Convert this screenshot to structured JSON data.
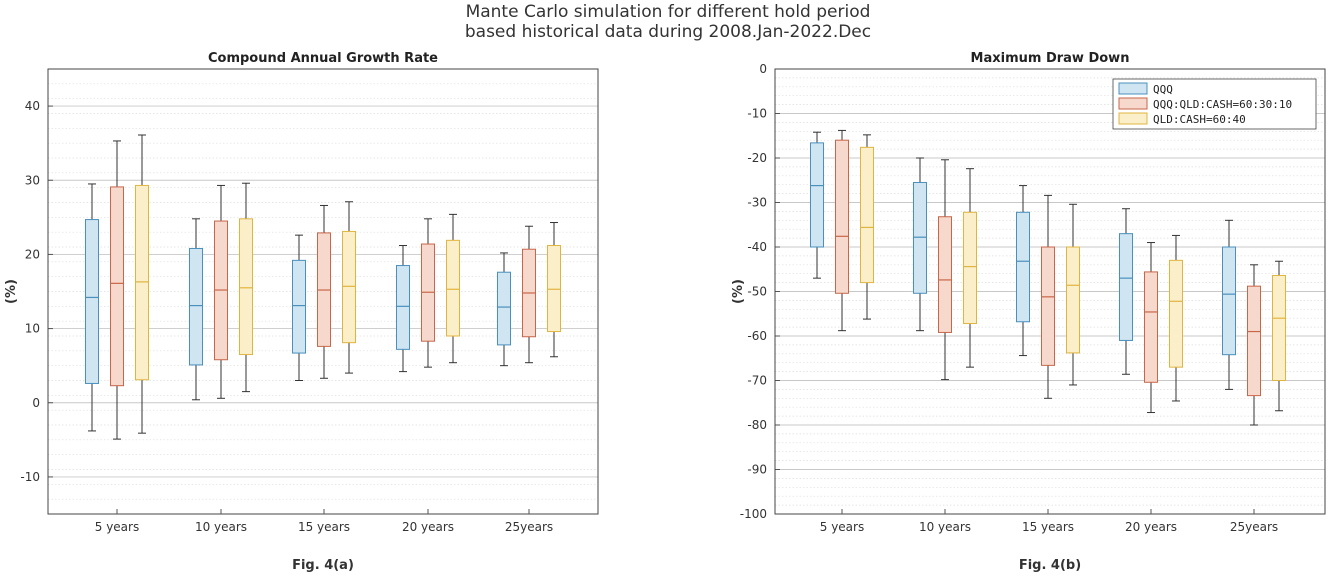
{
  "figure": {
    "title_line1": "Mante Carlo simulation for different hold period",
    "title_line2": "based historical data during 2008.Jan-2022.Dec"
  },
  "colors": {
    "QQQ": {
      "fill": "#cfe5f1",
      "stroke": "#4a90bd"
    },
    "QQQ:QLD:CASH=60:30:10": {
      "fill": "#f6d9cc",
      "stroke": "#c8664a"
    },
    "QLD:CASH=60:40": {
      "fill": "#fbefc9",
      "stroke": "#e0b440"
    }
  },
  "chart_data": [
    {
      "type": "box",
      "title": "Compound Annual Growth Rate",
      "ylabel": "(%)",
      "caption": "Fig. 4(a)",
      "ylim": [
        -15,
        45
      ],
      "yticks": [
        -10,
        0,
        10,
        20,
        30,
        40
      ],
      "grid": true,
      "categories": [
        "5 years",
        "10 years",
        "15 years",
        "20 years",
        "25years"
      ],
      "series": [
        {
          "name": "QQQ",
          "boxes": [
            {
              "min": -3.8,
              "q1": 2.6,
              "median": 14.2,
              "q3": 24.7,
              "max": 29.5
            },
            {
              "min": 0.4,
              "q1": 5.1,
              "median": 13.1,
              "q3": 20.8,
              "max": 24.8
            },
            {
              "min": 3.0,
              "q1": 6.7,
              "median": 13.1,
              "q3": 19.2,
              "max": 22.6
            },
            {
              "min": 4.2,
              "q1": 7.2,
              "median": 13.0,
              "q3": 18.5,
              "max": 21.2
            },
            {
              "min": 5.0,
              "q1": 7.8,
              "median": 12.9,
              "q3": 17.6,
              "max": 20.2
            }
          ]
        },
        {
          "name": "QQQ:QLD:CASH=60:30:10",
          "boxes": [
            {
              "min": -4.9,
              "q1": 2.3,
              "median": 16.1,
              "q3": 29.1,
              "max": 35.3
            },
            {
              "min": 0.6,
              "q1": 5.8,
              "median": 15.2,
              "q3": 24.5,
              "max": 29.3
            },
            {
              "min": 3.3,
              "q1": 7.6,
              "median": 15.2,
              "q3": 22.9,
              "max": 26.6
            },
            {
              "min": 4.8,
              "q1": 8.3,
              "median": 14.9,
              "q3": 21.4,
              "max": 24.8
            },
            {
              "min": 5.4,
              "q1": 8.9,
              "median": 14.8,
              "q3": 20.7,
              "max": 23.8
            }
          ]
        },
        {
          "name": "QLD:CASH=60:40",
          "boxes": [
            {
              "min": -4.1,
              "q1": 3.1,
              "median": 16.3,
              "q3": 29.3,
              "max": 36.1
            },
            {
              "min": 1.5,
              "q1": 6.5,
              "median": 15.5,
              "q3": 24.8,
              "max": 29.6
            },
            {
              "min": 4.0,
              "q1": 8.1,
              "median": 15.7,
              "q3": 23.1,
              "max": 27.1
            },
            {
              "min": 5.4,
              "q1": 9.0,
              "median": 15.3,
              "q3": 21.9,
              "max": 25.4
            },
            {
              "min": 6.2,
              "q1": 9.6,
              "median": 15.3,
              "q3": 21.2,
              "max": 24.3
            }
          ]
        }
      ]
    },
    {
      "type": "box",
      "title": "Maximum Draw Down",
      "ylabel": "(%)",
      "caption": "Fig. 4(b)",
      "ylim": [
        -100,
        0
      ],
      "yticks": [
        0,
        -10,
        -20,
        -30,
        -40,
        -50,
        -60,
        -70,
        -80,
        -90,
        -100
      ],
      "grid": true,
      "legend": "top-right",
      "categories": [
        "5 years",
        "10 years",
        "15 years",
        "20 years",
        "25years"
      ],
      "series": [
        {
          "name": "QQQ",
          "boxes": [
            {
              "min": -47.0,
              "q1": -40.0,
              "median": -26.2,
              "q3": -16.6,
              "max": -14.2
            },
            {
              "min": -58.8,
              "q1": -50.4,
              "median": -37.8,
              "q3": -25.5,
              "max": -20.0
            },
            {
              "min": -64.4,
              "q1": -56.8,
              "median": -43.2,
              "q3": -32.2,
              "max": -26.2
            },
            {
              "min": -68.6,
              "q1": -61.0,
              "median": -47.0,
              "q3": -37.0,
              "max": -31.4
            },
            {
              "min": -72.0,
              "q1": -64.2,
              "median": -50.6,
              "q3": -40.0,
              "max": -34.0
            }
          ]
        },
        {
          "name": "QQQ:QLD:CASH=60:30:10",
          "boxes": [
            {
              "min": -58.8,
              "q1": -50.4,
              "median": -37.6,
              "q3": -16.0,
              "max": -13.8
            },
            {
              "min": -69.8,
              "q1": -59.2,
              "median": -47.4,
              "q3": -33.2,
              "max": -20.4
            },
            {
              "min": -74.0,
              "q1": -66.6,
              "median": -51.2,
              "q3": -40.0,
              "max": -28.4
            },
            {
              "min": -77.2,
              "q1": -70.4,
              "median": -54.6,
              "q3": -45.6,
              "max": -39.0
            },
            {
              "min": -80.0,
              "q1": -73.4,
              "median": -59.0,
              "q3": -48.8,
              "max": -44.0
            }
          ]
        },
        {
          "name": "QLD:CASH=60:40",
          "boxes": [
            {
              "min": -56.2,
              "q1": -48.0,
              "median": -35.6,
              "q3": -17.6,
              "max": -14.8
            },
            {
              "min": -67.0,
              "q1": -57.2,
              "median": -44.4,
              "q3": -32.2,
              "max": -22.4
            },
            {
              "min": -71.0,
              "q1": -63.8,
              "median": -48.6,
              "q3": -40.0,
              "max": -30.4
            },
            {
              "min": -74.6,
              "q1": -67.0,
              "median": -52.2,
              "q3": -43.0,
              "max": -37.4
            },
            {
              "min": -76.8,
              "q1": -70.0,
              "median": -56.0,
              "q3": -46.4,
              "max": -43.2
            }
          ]
        }
      ]
    }
  ]
}
